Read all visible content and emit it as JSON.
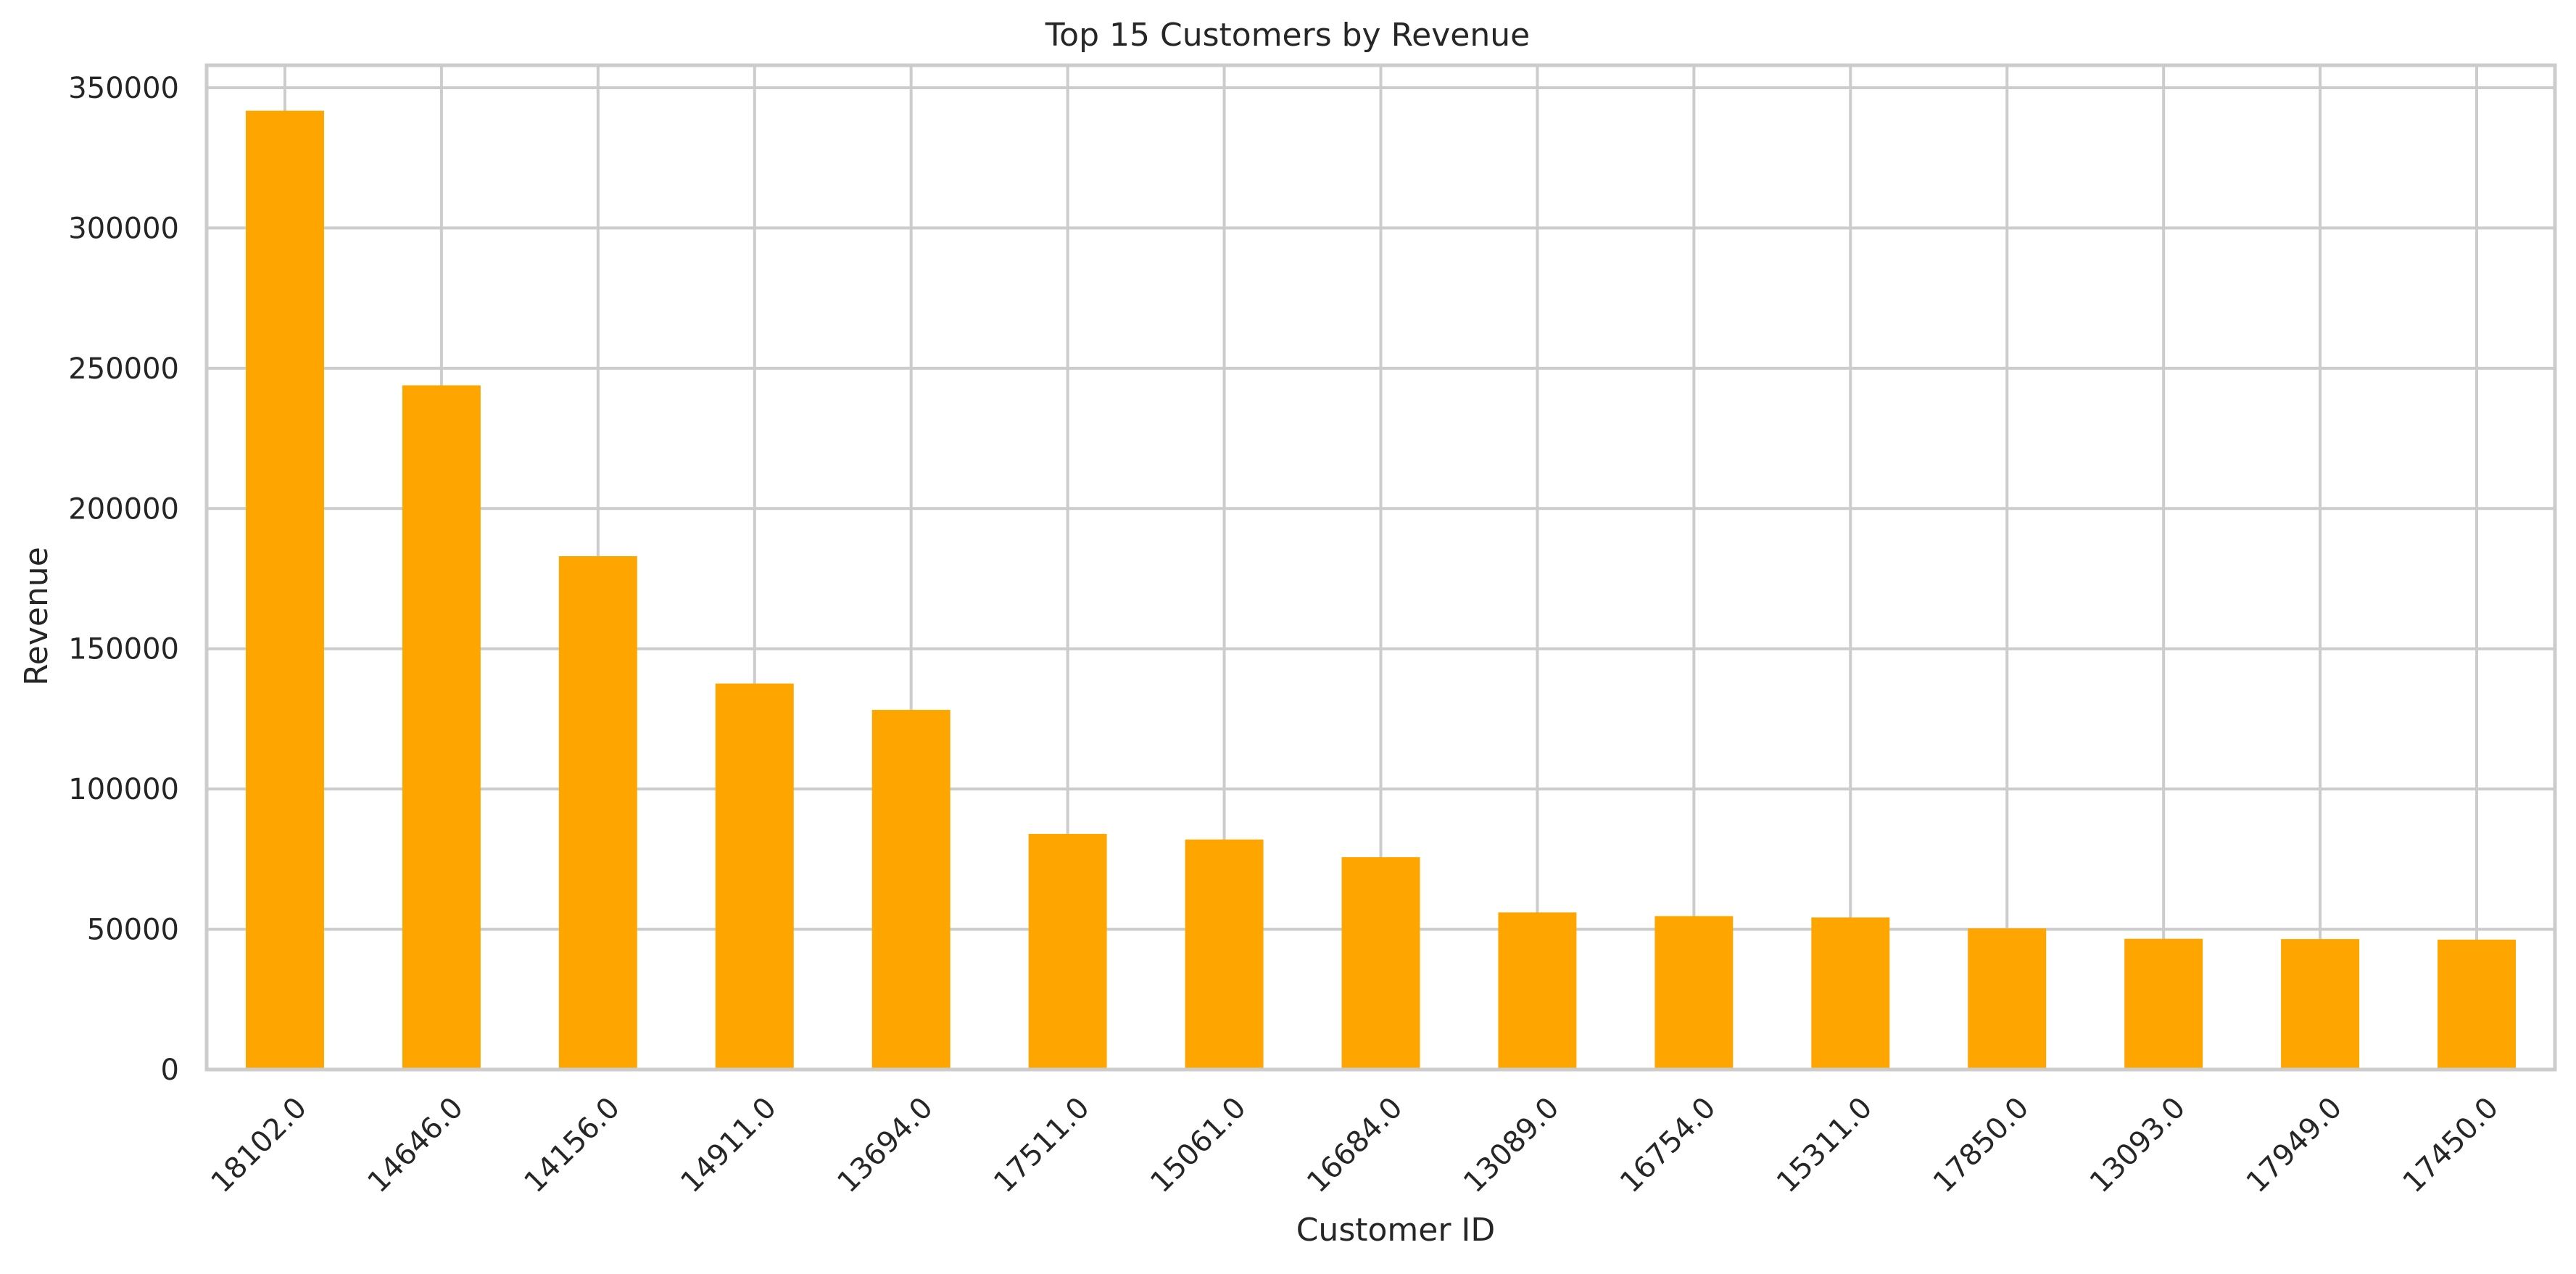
{
  "chart_data": {
    "type": "bar",
    "title": "Top 15 Customers by Revenue",
    "xlabel": "Customer ID",
    "ylabel": "Revenue",
    "categories": [
      "18102.0",
      "14646.0",
      "14156.0",
      "14911.0",
      "13694.0",
      "17511.0",
      "15061.0",
      "16684.0",
      "13089.0",
      "16754.0",
      "15311.0",
      "17850.0",
      "13093.0",
      "17949.0",
      "17450.0"
    ],
    "values": [
      341800,
      243900,
      183000,
      137600,
      128200,
      84000,
      82000,
      75700,
      56000,
      54700,
      54200,
      50300,
      46600,
      46500,
      46300
    ],
    "ylim": [
      0,
      358000
    ],
    "yticks": [
      0,
      50000,
      100000,
      150000,
      200000,
      250000,
      300000,
      350000
    ],
    "ytick_labels": [
      "0",
      "50000",
      "100000",
      "150000",
      "200000",
      "250000",
      "300000",
      "350000"
    ],
    "bar_color": "#FFA500",
    "grid": true,
    "grid_color": "#CCCCCC",
    "xtick_rotation": 45,
    "legend": false
  }
}
